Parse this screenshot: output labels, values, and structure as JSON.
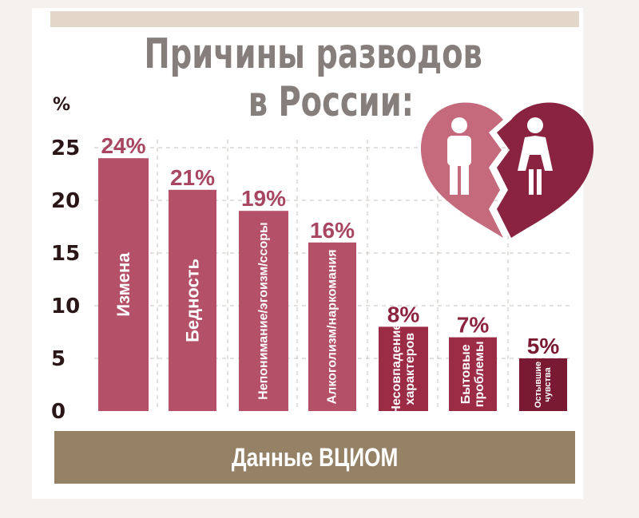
{
  "title_line1": "Причины разводов",
  "title_line2": "в России:",
  "footer": "Данные ВЦИОМ",
  "colors": {
    "bar_light": "#b45068",
    "bar_mid": "#9c2c46",
    "bar_dark": "#7a1a32",
    "title": "#857e7b",
    "footer_band": "#948166",
    "heart_left": "#c56a7c",
    "heart_right": "#8a2340"
  },
  "icons": [
    "broken-heart-icon",
    "man-icon",
    "woman-icon"
  ],
  "chart_data": {
    "type": "bar",
    "categories": [
      "Измена",
      "Бедность",
      "Непонимание/эгоизм/ссоры",
      "Алкоголизм/наркомания",
      "Несовпадение характеров",
      "Бытовые проблемы",
      "Остывшие чувства"
    ],
    "category_lines": [
      [
        "Измена"
      ],
      [
        "Бедность"
      ],
      [
        "Непонимание/эгоизм/ссоры"
      ],
      [
        "Алкоголизм/наркомания"
      ],
      [
        "Несовпадение",
        "характеров"
      ],
      [
        "Бытовые",
        "проблемы"
      ],
      [
        "Остывшие",
        "чувства"
      ]
    ],
    "values": [
      24,
      21,
      19,
      16,
      8,
      7,
      5
    ],
    "value_labels": [
      "24%",
      "21%",
      "19%",
      "16%",
      "8%",
      "7%",
      "5%"
    ],
    "ylabel": "%",
    "yticks": [
      0,
      5,
      10,
      15,
      20,
      25
    ],
    "ylim": [
      0,
      25
    ],
    "grid": true
  }
}
